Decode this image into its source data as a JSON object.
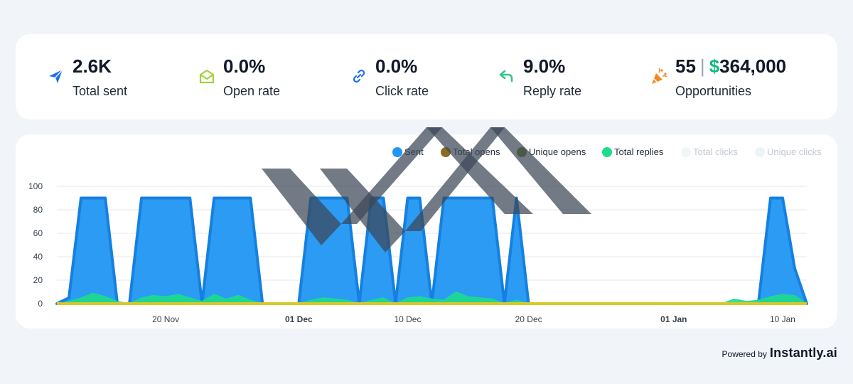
{
  "stats": [
    {
      "id": "sent",
      "value": "2.6K",
      "label": "Total sent",
      "icon": "paper-plane-icon",
      "color": "#1d6ef2"
    },
    {
      "id": "open",
      "value": "0.0%",
      "label": "Open rate",
      "icon": "envelope-open-icon",
      "color": "#a3d13a"
    },
    {
      "id": "click",
      "value": "0.0%",
      "label": "Click rate",
      "icon": "link-icon",
      "color": "#1d6ef2"
    },
    {
      "id": "reply",
      "value": "9.0%",
      "label": "Reply rate",
      "icon": "reply-arrow-icon",
      "color": "#34c48b"
    },
    {
      "id": "opp",
      "value": "55",
      "separator": "|",
      "dollar": "$",
      "amount": "364,000",
      "label": "Opportunities",
      "icon": "party-popper-icon",
      "color": "#f08a24"
    }
  ],
  "legend": [
    {
      "label": "Sent",
      "color": "#2196f3",
      "muted": false
    },
    {
      "label": "Total opens",
      "color": "#8a6d1f",
      "muted": false
    },
    {
      "label": "Unique opens",
      "color": "#6e8f1e",
      "muted": false
    },
    {
      "label": "Total replies",
      "color": "#1ddc8c",
      "muted": false
    },
    {
      "label": "Total clicks",
      "color": "#f3f6f8",
      "muted": true
    },
    {
      "label": "Unique clicks",
      "color": "#eef3f7",
      "muted": true
    }
  ],
  "chart_data": {
    "type": "area",
    "y_ticks": [
      0,
      20,
      40,
      60,
      80,
      100
    ],
    "ylim": [
      0,
      100
    ],
    "x_ticks": [
      {
        "label": "20 Nov",
        "day": 9,
        "bold": false
      },
      {
        "label": "01 Dec",
        "day": 20,
        "bold": true
      },
      {
        "label": "10 Dec",
        "day": 29,
        "bold": false
      },
      {
        "label": "20 Dec",
        "day": 39,
        "bold": false
      },
      {
        "label": "01 Jan",
        "day": 51,
        "bold": true
      },
      {
        "label": "10 Jan",
        "day": 60,
        "bold": false
      }
    ],
    "series": [
      {
        "name": "Sent",
        "color": "#2196f3",
        "points": [
          [
            0,
            0
          ],
          [
            1,
            5
          ],
          [
            2,
            90
          ],
          [
            3,
            90
          ],
          [
            4,
            90
          ],
          [
            5,
            0
          ],
          [
            6,
            0
          ],
          [
            7,
            90
          ],
          [
            8,
            90
          ],
          [
            9,
            90
          ],
          [
            10,
            90
          ],
          [
            11,
            90
          ],
          [
            12,
            0
          ],
          [
            13,
            90
          ],
          [
            14,
            90
          ],
          [
            15,
            90
          ],
          [
            16,
            90
          ],
          [
            17,
            0
          ],
          [
            18,
            0
          ],
          [
            19,
            0
          ],
          [
            20,
            0
          ],
          [
            21,
            90
          ],
          [
            22,
            90
          ],
          [
            23,
            90
          ],
          [
            24,
            90
          ],
          [
            25,
            0
          ],
          [
            26,
            90
          ],
          [
            27,
            90
          ],
          [
            28,
            0
          ],
          [
            29,
            90
          ],
          [
            30,
            90
          ],
          [
            31,
            0
          ],
          [
            32,
            90
          ],
          [
            33,
            90
          ],
          [
            34,
            90
          ],
          [
            35,
            90
          ],
          [
            36,
            90
          ],
          [
            37,
            0
          ],
          [
            38,
            90
          ],
          [
            39,
            0
          ],
          [
            40,
            0
          ],
          [
            45,
            0
          ],
          [
            50,
            0
          ],
          [
            55,
            0
          ],
          [
            58,
            0
          ],
          [
            59,
            90
          ],
          [
            60,
            90
          ],
          [
            61,
            30
          ],
          [
            62,
            0
          ]
        ]
      },
      {
        "name": "Total replies",
        "color": "#1ddc8c",
        "points": [
          [
            0,
            0
          ],
          [
            1,
            2
          ],
          [
            2,
            5
          ],
          [
            3,
            9
          ],
          [
            4,
            6
          ],
          [
            5,
            2
          ],
          [
            6,
            0
          ],
          [
            7,
            5
          ],
          [
            8,
            7
          ],
          [
            9,
            6
          ],
          [
            10,
            8
          ],
          [
            11,
            5
          ],
          [
            12,
            2
          ],
          [
            13,
            8
          ],
          [
            14,
            4
          ],
          [
            15,
            7
          ],
          [
            16,
            3
          ],
          [
            17,
            0
          ],
          [
            20,
            0
          ],
          [
            21,
            3
          ],
          [
            22,
            5
          ],
          [
            23,
            4
          ],
          [
            24,
            3
          ],
          [
            25,
            0
          ],
          [
            26,
            3
          ],
          [
            27,
            5
          ],
          [
            28,
            0
          ],
          [
            29,
            5
          ],
          [
            30,
            6
          ],
          [
            31,
            4
          ],
          [
            32,
            3
          ],
          [
            33,
            10
          ],
          [
            34,
            6
          ],
          [
            35,
            5
          ],
          [
            36,
            4
          ],
          [
            37,
            0
          ],
          [
            38,
            3
          ],
          [
            39,
            0
          ],
          [
            55,
            0
          ],
          [
            56,
            4
          ],
          [
            57,
            2
          ],
          [
            58,
            3
          ],
          [
            59,
            6
          ],
          [
            60,
            8
          ],
          [
            61,
            7
          ],
          [
            62,
            0
          ]
        ]
      }
    ],
    "x_range": [
      0,
      62
    ]
  },
  "footer": {
    "powered_by": "Powered by",
    "brand": "Instantly.ai"
  }
}
